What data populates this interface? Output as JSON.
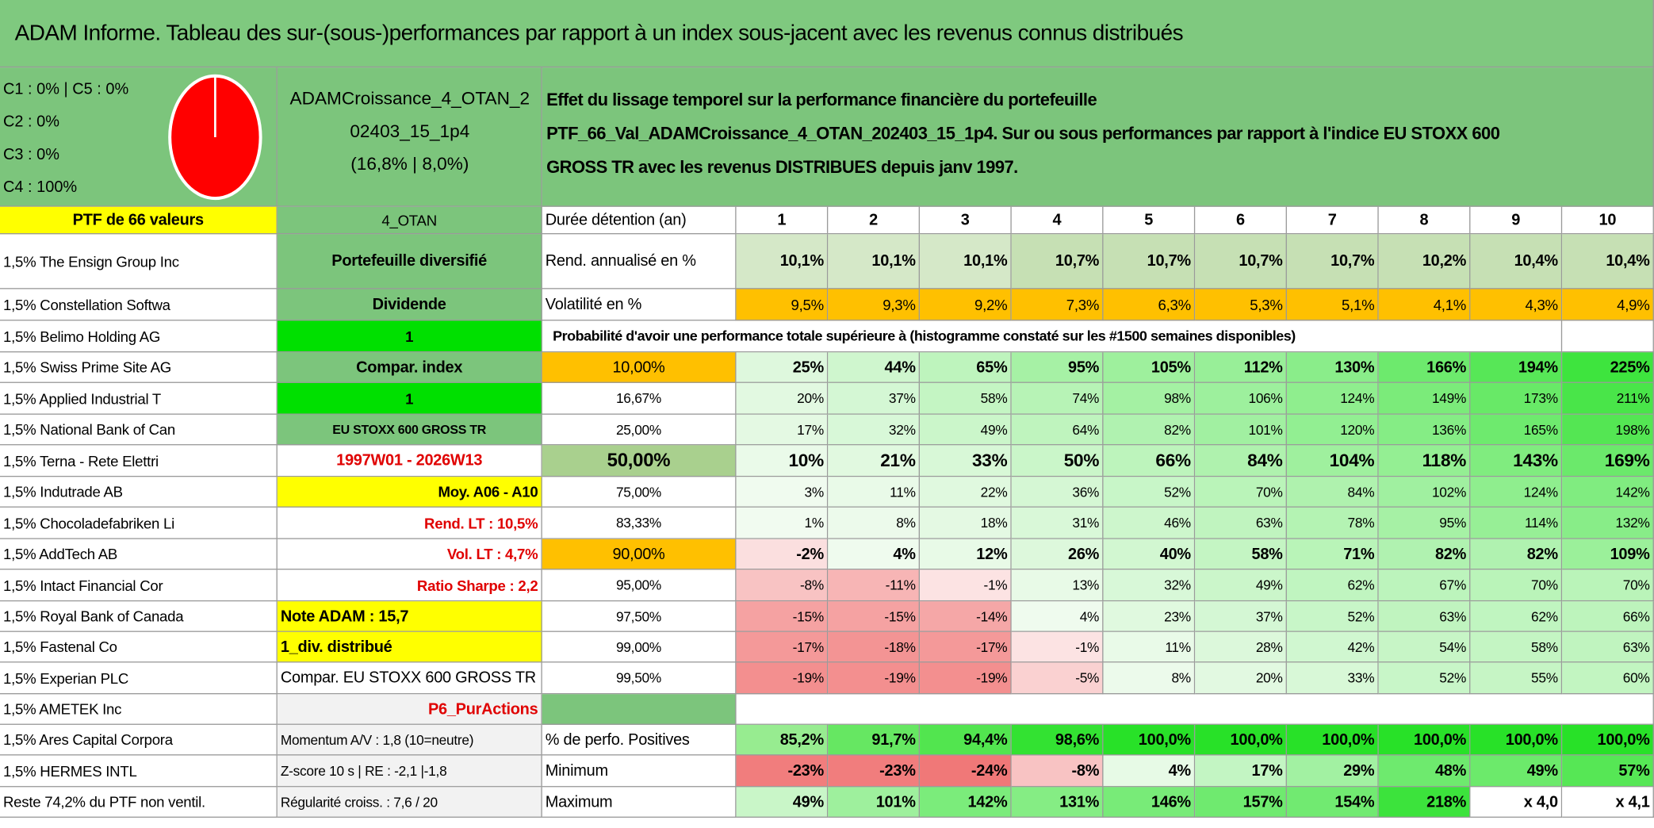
{
  "title": "ADAM Informe. Tableau des sur-(sous-)performances par rapport à un index sous-jacent avec les revenus connus distribués",
  "legend": [
    "C1 : 0% | C5 : 0%",
    "C2 : 0%",
    "C3 : 0%",
    "C4 : 100%"
  ],
  "portfolio": [
    "ADAMCroissance_4_OTAN_2",
    "02403_15_1p4",
    "(16,8% | 8,0%)"
  ],
  "description": [
    "Effet du lissage temporel sur la performance financière du portefeuille",
    "PTF_66_Val_ADAMCroissance_4_OTAN_202403_15_1p4. Sur ou sous performances par rapport à l'indice EU STOXX 600",
    "GROSS TR avec les revenus DISTRIBUES depuis janv 1997."
  ],
  "column_a": [
    "PTF de 66 valeurs",
    "1,5% The Ensign Group Inc",
    "1,5% Constellation Softwa",
    "1,5% Belimo Holding AG",
    "1,5% Swiss Prime Site AG",
    "1,5% Applied Industrial T",
    "1,5% National Bank of Can",
    "1,5% Terna - Rete Elettri",
    "1,5% Indutrade AB",
    "1,5% Chocoladefabriken Li",
    "1,5% AddTech AB",
    "1,5% Intact Financial Cor",
    "1,5% Royal Bank of Canada",
    "1,5% Fastenal Co",
    "1,5% Experian PLC",
    "1,5% AMETEK Inc",
    "1,5% Ares Capital Corpora",
    "1,5% HERMES INTL",
    "Reste 74,2% du PTF non ventil."
  ],
  "column_b": [
    "4_OTAN",
    "Portefeuille diversifié",
    "Dividende",
    1,
    "Compar. index",
    1,
    "EU STOXX 600 GROSS TR",
    "1997W01 - 2026W13",
    "Moy. A06 - A10",
    "Rend. LT : 10,5%",
    "Vol. LT : 4,7%",
    "Ratio Sharpe : 2,2",
    "Note ADAM : 15,7",
    "1_div. distribué",
    "Compar. EU STOXX 600 GROSS TR",
    "P6_PurActions",
    "Momentum A/V : 1,8 (10=neutre)",
    "Z-score 10 s | RE : -2,1 |-1,8",
    "Régularité croiss. : 7,6 / 20"
  ],
  "grid": [
    {
      "label": "Durée détention (an)",
      "values": [
        1,
        2,
        3,
        4,
        5,
        6,
        7,
        8,
        9,
        10
      ]
    },
    {
      "label": "Rend. annualisé en %",
      "values": [
        "10,1%",
        "10,1%",
        "10,1%",
        "10,7%",
        "10,7%",
        "10,7%",
        "10,7%",
        "10,2%",
        "10,4%",
        "10,4%"
      ]
    },
    {
      "label": "Volatilité en %",
      "values": [
        "9,5%",
        "9,3%",
        "9,2%",
        "7,3%",
        "6,3%",
        "5,3%",
        "5,1%",
        "4,1%",
        "4,3%",
        "4,9%"
      ]
    },
    {
      "label": "Probabilité d'avoir une performance totale supérieure à (histogramme constaté sur les #1500 semaines disponibles)"
    },
    {
      "label": "10,00%",
      "values": [
        "25%",
        "44%",
        "65%",
        "95%",
        "105%",
        "112%",
        "130%",
        "166%",
        "194%",
        "225%"
      ]
    },
    {
      "label": "16,67%",
      "values": [
        "20%",
        "37%",
        "58%",
        "74%",
        "98%",
        "106%",
        "124%",
        "149%",
        "173%",
        "211%"
      ]
    },
    {
      "label": "25,00%",
      "values": [
        "17%",
        "32%",
        "49%",
        "64%",
        "82%",
        "101%",
        "120%",
        "136%",
        "165%",
        "198%"
      ]
    },
    {
      "label": "50,00%",
      "values": [
        "10%",
        "21%",
        "33%",
        "50%",
        "66%",
        "84%",
        "104%",
        "118%",
        "143%",
        "169%"
      ]
    },
    {
      "label": "75,00%",
      "values": [
        "3%",
        "11%",
        "22%",
        "36%",
        "52%",
        "70%",
        "84%",
        "102%",
        "124%",
        "142%"
      ]
    },
    {
      "label": "83,33%",
      "values": [
        "1%",
        "8%",
        "18%",
        "31%",
        "46%",
        "63%",
        "78%",
        "95%",
        "114%",
        "132%"
      ]
    },
    {
      "label": "90,00%",
      "values": [
        "-2%",
        "4%",
        "12%",
        "26%",
        "40%",
        "58%",
        "71%",
        "82%",
        "82%",
        "109%"
      ]
    },
    {
      "label": "95,00%",
      "values": [
        "-8%",
        "-11%",
        "-1%",
        "13%",
        "32%",
        "49%",
        "62%",
        "67%",
        "70%",
        "70%"
      ]
    },
    {
      "label": "97,50%",
      "values": [
        "-15%",
        "-15%",
        "-14%",
        "4%",
        "23%",
        "37%",
        "52%",
        "63%",
        "62%",
        "66%"
      ]
    },
    {
      "label": "99,00%",
      "values": [
        "-17%",
        "-18%",
        "-17%",
        "-1%",
        "11%",
        "28%",
        "42%",
        "54%",
        "58%",
        "63%"
      ]
    },
    {
      "label": "99,50%",
      "values": [
        "-19%",
        "-19%",
        "-19%",
        "-5%",
        "8%",
        "20%",
        "33%",
        "52%",
        "55%",
        "60%"
      ]
    },
    null,
    {
      "label": "% de perfo. Positives",
      "values": [
        "85,2%",
        "91,7%",
        "94,4%",
        "98,6%",
        "100,0%",
        "100,0%",
        "100,0%",
        "100,0%",
        "100,0%",
        "100,0%"
      ]
    },
    {
      "label": "Minimum",
      "values": [
        "-23%",
        "-23%",
        "-24%",
        "-8%",
        "4%",
        "17%",
        "29%",
        "48%",
        "49%",
        "57%"
      ]
    },
    {
      "label": "Maximum",
      "values": [
        "49%",
        "101%",
        "142%",
        "131%",
        "146%",
        "157%",
        "154%",
        "218%",
        "x 4,0",
        "x 4,1"
      ]
    }
  ]
}
